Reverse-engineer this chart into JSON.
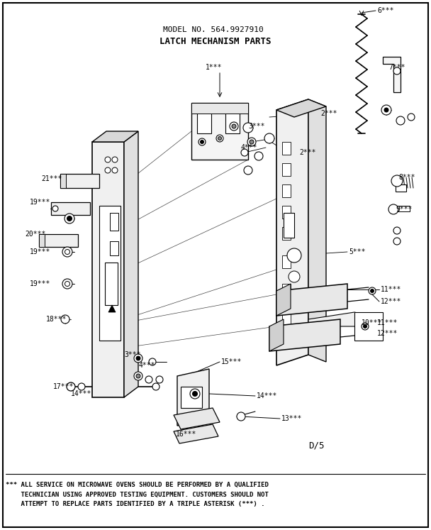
{
  "title_line1": "MODEL NO. 564.9927910",
  "title_line2": "LATCH MECHANISM PARTS",
  "diagram_code": "D/5",
  "footnote_line1": "*** ALL SERVICE ON MICROWAVE OVENS SHOULD BE PERFORMED BY A QUALIFIED",
  "footnote_line2": "    TECHNICIAN USING APPROVED TESTING EQUIPMENT. CUSTOMERS SHOULD NOT",
  "footnote_line3": "    ATTEMPT TO REPLACE PARTS IDENTIFIED BY A TRIPLE ASTERISK (***) .",
  "bg_color": "#ffffff",
  "fg_color": "#000000",
  "fig_width": 6.08,
  "fig_height": 7.47,
  "dpi": 100
}
